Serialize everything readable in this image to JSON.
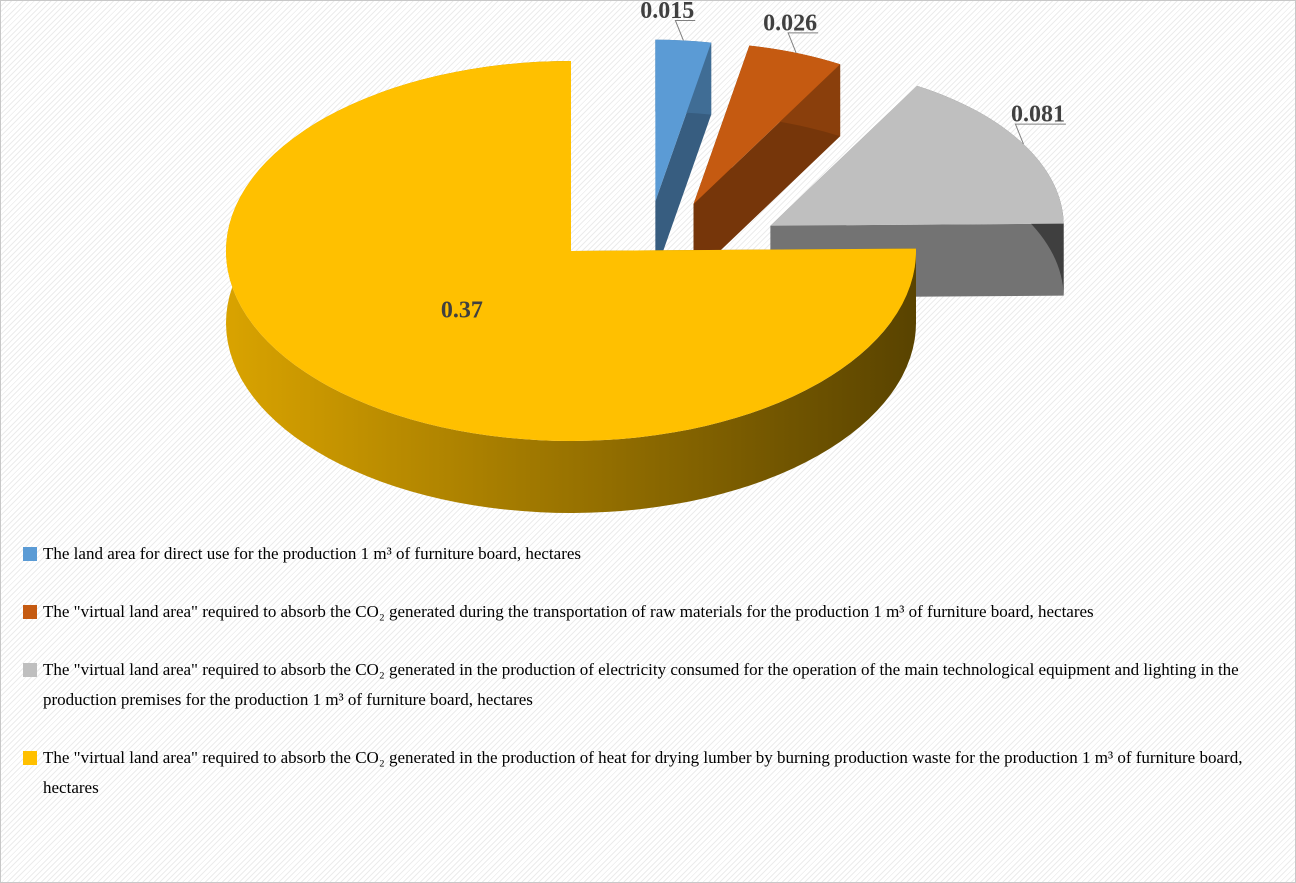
{
  "chart_data": {
    "type": "pie",
    "categories": [
      "The land area for direct use for the production 1 m³ of furniture board, hectares",
      "The \"virtual land area\" required to absorb the CO₂ generated during the transportation of raw materials for the production 1 m³ of furniture board, hectares",
      "The \"virtual land area\" required to absorb the CO₂ generated in the production of electricity consumed for the operation of the main technological equipment and lighting in the production premises for the production 1 m³ of furniture board, hectares",
      "The \"virtual land area\" required to absorb the CO₂ generated in the production of heat for drying lumber by burning production waste for the production 1 m³ of furniture board, hectares"
    ],
    "values": [
      0.015,
      0.026,
      0.081,
      0.37
    ],
    "colors": [
      "#5b9bd5",
      "#c55a11",
      "#bfbfbf",
      "#ffc000"
    ],
    "legend": "bottom"
  }
}
